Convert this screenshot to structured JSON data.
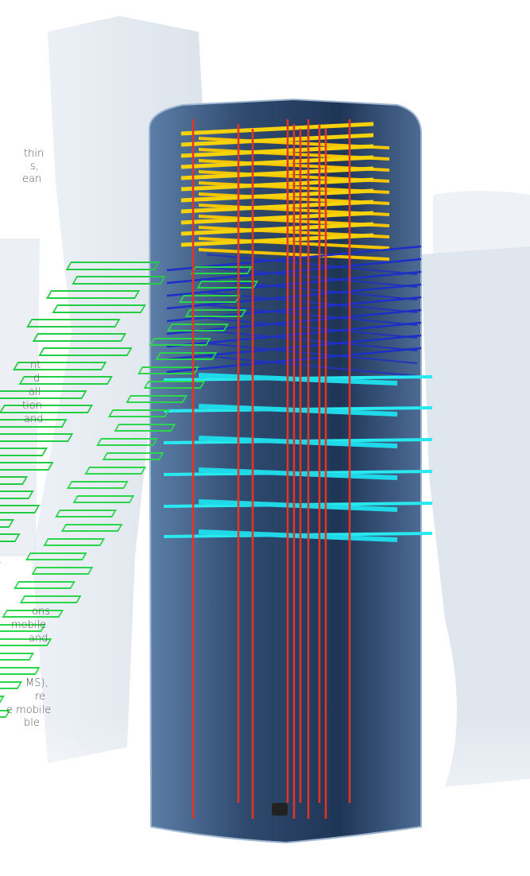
{
  "text_blocks": [
    {
      "lines": [
        "thin",
        "s,",
        "ean"
      ]
    },
    {
      "lines": [
        "nt",
        "d",
        "all",
        "tion",
        "and"
      ]
    },
    {
      "lines": [
        "ons",
        "mobile",
        "and"
      ]
    },
    {
      "lines": [
        "MS),",
        "re",
        "e mobile",
        "ble"
      ]
    }
  ]
}
